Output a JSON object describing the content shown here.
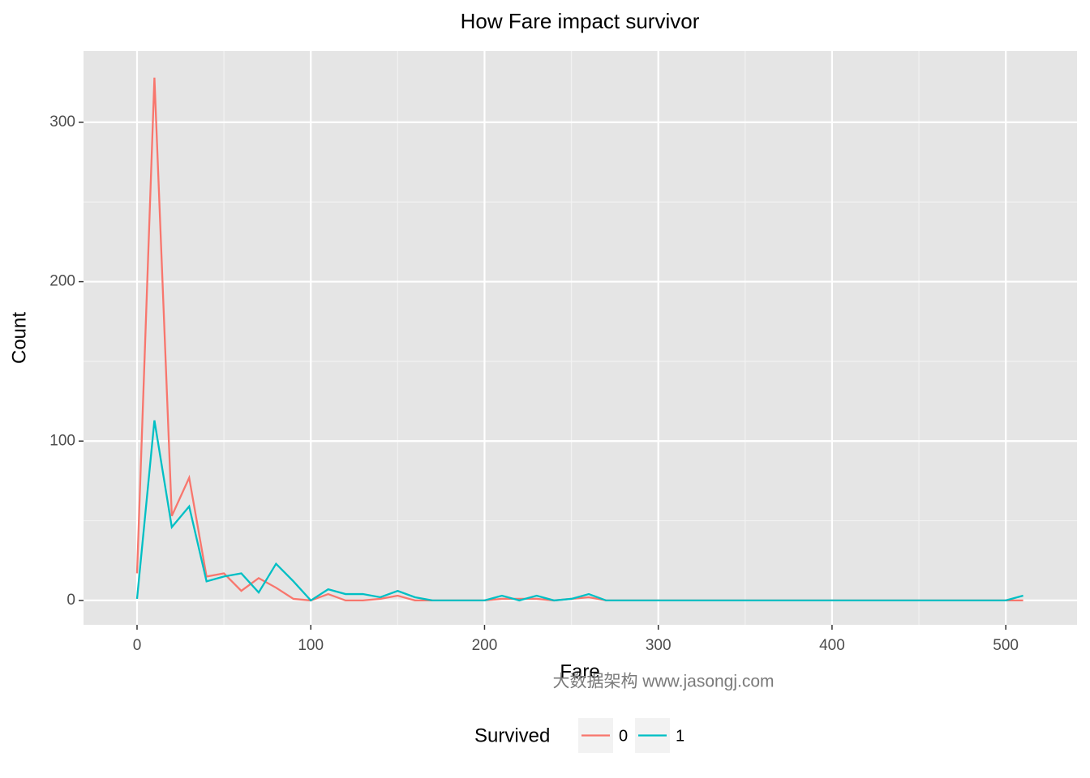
{
  "chart_data": {
    "type": "line",
    "title": "How Fare impact survivor",
    "x_label": "Fare",
    "y_label": "Count",
    "annotation": "大数据架构  www.jasongj.com",
    "legend_title": "Survived",
    "legend_position": "bottom",
    "x": [
      0,
      10,
      20,
      30,
      40,
      50,
      60,
      70,
      80,
      90,
      100,
      110,
      120,
      130,
      140,
      150,
      160,
      170,
      180,
      190,
      200,
      210,
      220,
      230,
      240,
      250,
      260,
      270,
      280,
      290,
      300,
      310,
      320,
      330,
      340,
      350,
      360,
      370,
      380,
      390,
      400,
      410,
      420,
      430,
      440,
      450,
      460,
      470,
      480,
      490,
      500,
      510
    ],
    "series": [
      {
        "name": "0",
        "color": "#f8766d",
        "values": [
          17,
          328,
          53,
          77,
          15,
          17,
          6,
          14,
          8,
          1,
          0,
          4,
          0,
          0,
          1,
          3,
          0,
          0,
          0,
          0,
          0,
          1,
          1,
          1,
          0,
          1,
          2,
          0,
          0,
          0,
          0,
          0,
          0,
          0,
          0,
          0,
          0,
          0,
          0,
          0,
          0,
          0,
          0,
          0,
          0,
          0,
          0,
          0,
          0,
          0,
          0,
          0
        ]
      },
      {
        "name": "1",
        "color": "#00bfc4",
        "values": [
          1,
          113,
          46,
          59,
          12,
          15,
          17,
          5,
          23,
          12,
          0,
          7,
          4,
          4,
          2,
          6,
          2,
          0,
          0,
          0,
          0,
          3,
          0,
          3,
          0,
          1,
          4,
          0,
          0,
          0,
          0,
          0,
          0,
          0,
          0,
          0,
          0,
          0,
          0,
          0,
          0,
          0,
          0,
          0,
          0,
          0,
          0,
          0,
          0,
          0,
          0,
          3
        ]
      }
    ],
    "xlim": [
      -30.8,
      541
    ],
    "ylim": [
      -15.3,
      344.7
    ],
    "xticks": [
      0,
      100,
      200,
      300,
      400,
      500
    ],
    "yticks": [
      0,
      100,
      200,
      300
    ],
    "x_minor_ticks": [
      50,
      150,
      250,
      350,
      450
    ],
    "y_minor_ticks": [
      50,
      150,
      250
    ],
    "grid": true
  }
}
